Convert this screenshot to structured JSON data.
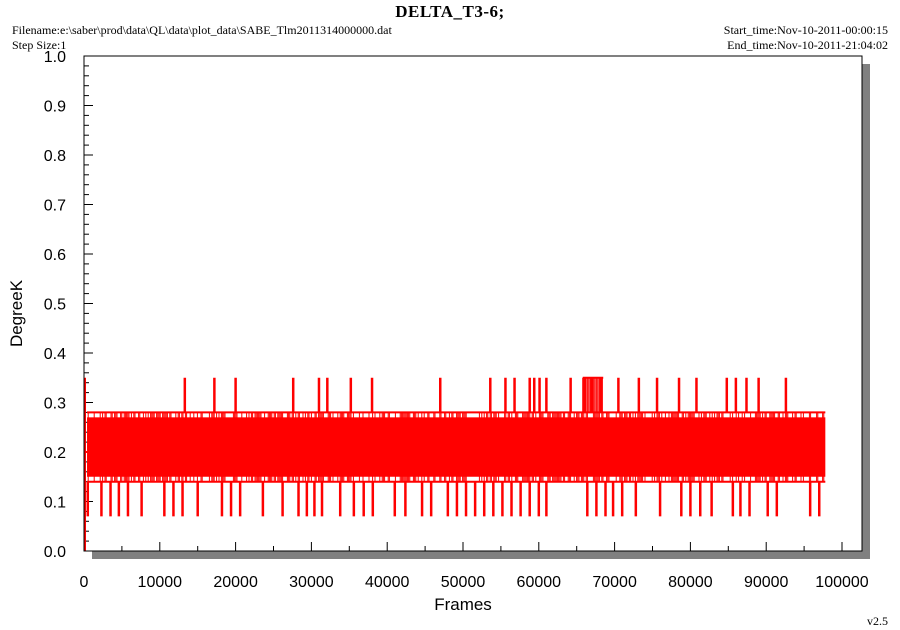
{
  "header": {
    "title": "DELTA_T3-6;",
    "filename": "Filename:e:\\saber\\prod\\data\\QL\\data\\plot_data\\SABE_Tlm2011314000000.dat",
    "step_size": "Step Size:1",
    "start_time": "Start_time:Nov-10-2011-00:00:15",
    "end_time": "End_time:Nov-10-2011-21:04:02"
  },
  "footer": {
    "version": "v2.5"
  },
  "colors": {
    "series": "#ff0000",
    "frame_shadow": "#808080",
    "axis": "#000000"
  },
  "chart_data": {
    "type": "line",
    "xlabel": "Frames",
    "ylabel": "DegreeK",
    "xlim": [
      0,
      100000
    ],
    "ylim": [
      0,
      1.0
    ],
    "x_ticks": [
      "0",
      "10000",
      "20000",
      "30000",
      "40000",
      "50000",
      "60000",
      "70000",
      "80000",
      "90000",
      "100000"
    ],
    "y_ticks": [
      "0.0",
      "0.1",
      "0.2",
      "0.3",
      "0.4",
      "0.5",
      "0.6",
      "0.7",
      "0.8",
      "0.9",
      "1.0"
    ],
    "grid": false,
    "series": [
      {
        "color": "#ff0000",
        "band": {
          "x_range": [
            0,
            97800
          ],
          "lower": 0.14,
          "upper": 0.28,
          "dense_mid_range": [
            0.15,
            0.27
          ]
        },
        "spikes_high": [
          {
            "x": 13300,
            "y": 0.35
          },
          {
            "x": 17200,
            "y": 0.35
          },
          {
            "x": 20000,
            "y": 0.35
          },
          {
            "x": 27600,
            "y": 0.35
          },
          {
            "x": 31000,
            "y": 0.35
          },
          {
            "x": 32100,
            "y": 0.35
          },
          {
            "x": 35200,
            "y": 0.35
          },
          {
            "x": 38000,
            "y": 0.35
          },
          {
            "x": 47000,
            "y": 0.35
          },
          {
            "x": 53600,
            "y": 0.35
          },
          {
            "x": 55600,
            "y": 0.35
          },
          {
            "x": 56800,
            "y": 0.35
          },
          {
            "x": 58800,
            "y": 0.35
          },
          {
            "x": 59400,
            "y": 0.35
          },
          {
            "x": 60100,
            "y": 0.35
          },
          {
            "x": 61000,
            "y": 0.35
          },
          {
            "x": 64200,
            "y": 0.35
          },
          {
            "x": 66000,
            "y": 0.35
          },
          {
            "x": 67000,
            "y": 0.35
          },
          {
            "x": 68200,
            "y": 0.35
          },
          {
            "x": 70500,
            "y": 0.35
          },
          {
            "x": 73200,
            "y": 0.35
          },
          {
            "x": 75600,
            "y": 0.35
          },
          {
            "x": 78500,
            "y": 0.35
          },
          {
            "x": 80800,
            "y": 0.35
          },
          {
            "x": 84800,
            "y": 0.35
          },
          {
            "x": 86000,
            "y": 0.35
          },
          {
            "x": 87400,
            "y": 0.35
          },
          {
            "x": 89000,
            "y": 0.35
          },
          {
            "x": 92600,
            "y": 0.35
          }
        ],
        "dense_high_range": [
          65800,
          68500
        ],
        "dense_high_value": 0.35,
        "spikes_low": [
          {
            "x": 500,
            "y": 0.07
          },
          {
            "x": 2300,
            "y": 0.07
          },
          {
            "x": 3500,
            "y": 0.07
          },
          {
            "x": 4600,
            "y": 0.07
          },
          {
            "x": 5800,
            "y": 0.07
          },
          {
            "x": 7600,
            "y": 0.07
          },
          {
            "x": 10600,
            "y": 0.07
          },
          {
            "x": 11800,
            "y": 0.07
          },
          {
            "x": 13000,
            "y": 0.07
          },
          {
            "x": 15000,
            "y": 0.07
          },
          {
            "x": 18200,
            "y": 0.07
          },
          {
            "x": 19400,
            "y": 0.07
          },
          {
            "x": 20600,
            "y": 0.07
          },
          {
            "x": 23600,
            "y": 0.07
          },
          {
            "x": 26200,
            "y": 0.07
          },
          {
            "x": 28300,
            "y": 0.07
          },
          {
            "x": 29400,
            "y": 0.07
          },
          {
            "x": 30400,
            "y": 0.07
          },
          {
            "x": 31400,
            "y": 0.07
          },
          {
            "x": 33800,
            "y": 0.07
          },
          {
            "x": 35600,
            "y": 0.07
          },
          {
            "x": 36900,
            "y": 0.07
          },
          {
            "x": 38100,
            "y": 0.07
          },
          {
            "x": 41000,
            "y": 0.07
          },
          {
            "x": 42400,
            "y": 0.07
          },
          {
            "x": 44600,
            "y": 0.07
          },
          {
            "x": 45800,
            "y": 0.07
          },
          {
            "x": 48000,
            "y": 0.07
          },
          {
            "x": 49200,
            "y": 0.07
          },
          {
            "x": 50400,
            "y": 0.07
          },
          {
            "x": 51600,
            "y": 0.07
          },
          {
            "x": 52800,
            "y": 0.07
          },
          {
            "x": 54000,
            "y": 0.07
          },
          {
            "x": 55200,
            "y": 0.07
          },
          {
            "x": 56400,
            "y": 0.07
          },
          {
            "x": 57600,
            "y": 0.07
          },
          {
            "x": 58800,
            "y": 0.07
          },
          {
            "x": 60000,
            "y": 0.07
          },
          {
            "x": 61000,
            "y": 0.07
          },
          {
            "x": 66400,
            "y": 0.07
          },
          {
            "x": 67600,
            "y": 0.07
          },
          {
            "x": 68800,
            "y": 0.07
          },
          {
            "x": 69800,
            "y": 0.07
          },
          {
            "x": 71000,
            "y": 0.07
          },
          {
            "x": 72800,
            "y": 0.07
          },
          {
            "x": 76000,
            "y": 0.07
          },
          {
            "x": 78800,
            "y": 0.07
          },
          {
            "x": 80000,
            "y": 0.07
          },
          {
            "x": 81300,
            "y": 0.07
          },
          {
            "x": 82800,
            "y": 0.07
          },
          {
            "x": 85600,
            "y": 0.07
          },
          {
            "x": 86600,
            "y": 0.07
          },
          {
            "x": 87800,
            "y": 0.07
          },
          {
            "x": 90200,
            "y": 0.07
          },
          {
            "x": 91400,
            "y": 0.07
          },
          {
            "x": 95800,
            "y": 0.07
          },
          {
            "x": 97000,
            "y": 0.07
          }
        ],
        "start_spike": {
          "x": 0,
          "y_range": [
            0.0,
            0.35
          ]
        }
      }
    ]
  }
}
